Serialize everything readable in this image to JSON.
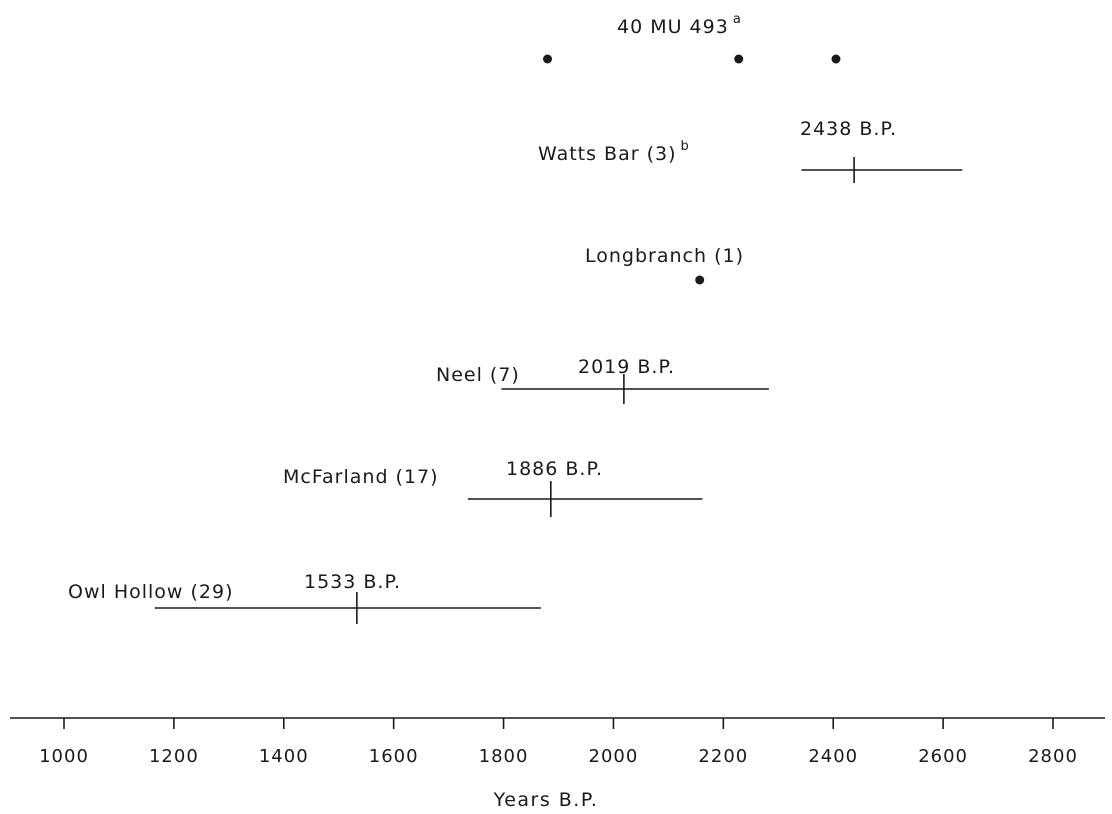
{
  "chart_data": {
    "type": "scatter",
    "xlabel": "Years B.P.",
    "xlim": [
      900,
      2900
    ],
    "ticks": [
      1000,
      1200,
      1400,
      1600,
      1800,
      2000,
      2200,
      2400,
      2600,
      2800
    ],
    "sites": [
      {
        "name": "40 MU 493",
        "sup": "a",
        "points": [
          1880,
          2228,
          2405
        ]
      },
      {
        "name": "Watts Bar (3)",
        "sup": "b",
        "mean_label": "2438 B.P.",
        "mean": 2438,
        "range": [
          2342,
          2635
        ]
      },
      {
        "name": "Longbranch (1)",
        "points": [
          2157
        ]
      },
      {
        "name": "Neel (7)",
        "mean_label": "2019 B.P.",
        "mean": 2019,
        "range": [
          1796,
          2283
        ]
      },
      {
        "name": "McFarland (17)",
        "mean_label": "1886 B.P.",
        "mean": 1886,
        "range": [
          1735,
          2162
        ]
      },
      {
        "name": "Owl Hollow (29)",
        "mean_label": "1533 B.P.",
        "mean": 1533,
        "range": [
          1165,
          1868
        ]
      }
    ]
  }
}
